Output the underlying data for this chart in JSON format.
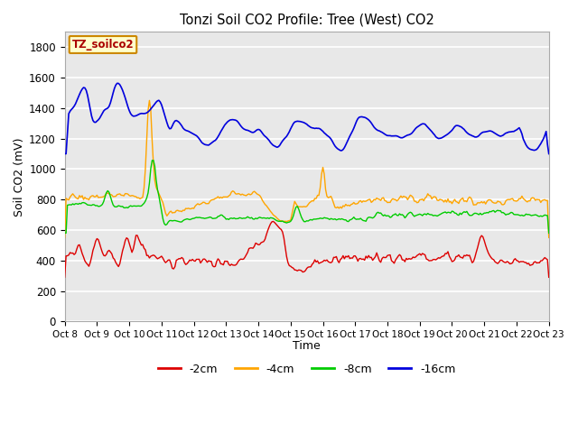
{
  "title": "Tonzi Soil CO2 Profile: Tree (West) CO2",
  "xlabel": "Time",
  "ylabel": "Soil CO2 (mV)",
  "ylim": [
    0,
    1900
  ],
  "xlim": [
    0,
    360
  ],
  "annotation": "TZ_soilco2",
  "xtick_labels": [
    "Oct 8",
    "Oct 9",
    "Oct 10",
    "Oct 11",
    "Oct 12",
    "Oct 13",
    "Oct 14",
    "Oct 15",
    "Oct 16",
    "Oct 17",
    "Oct 18",
    "Oct 19",
    "Oct 20",
    "Oct 21",
    "Oct 22",
    "Oct 23"
  ],
  "xtick_positions": [
    0,
    24,
    48,
    72,
    96,
    120,
    144,
    168,
    192,
    216,
    240,
    264,
    288,
    312,
    336,
    360
  ],
  "ytick_positions": [
    0,
    200,
    400,
    600,
    800,
    1000,
    1200,
    1400,
    1600,
    1800
  ],
  "series": {
    "-2cm": {
      "color": "#dd0000",
      "lw": 1.0
    },
    "-4cm": {
      "color": "#ffa500",
      "lw": 1.0
    },
    "-8cm": {
      "color": "#00cc00",
      "lw": 1.0
    },
    "-16cm": {
      "color": "#0000dd",
      "lw": 1.2
    }
  },
  "figsize": [
    6.4,
    4.8
  ],
  "dpi": 100
}
